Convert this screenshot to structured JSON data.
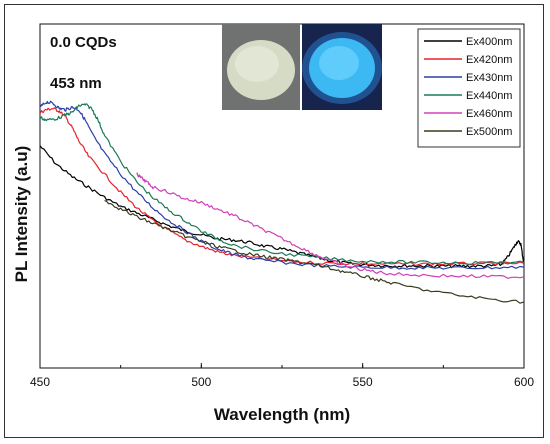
{
  "chart_data": {
    "type": "line",
    "xlabel": "Wavelength (nm)",
    "ylabel": "PL Intensity (a.u)",
    "xlim": [
      450,
      600
    ],
    "ylim": [
      0,
      1
    ],
    "x_ticks": [
      "450",
      "500",
      "550",
      "600"
    ],
    "grid": false,
    "legend_position": "top-right",
    "annotations": [
      "0.0 CQDs",
      "453 nm"
    ],
    "series": [
      {
        "name": "Ex400nm",
        "color": "#000000",
        "x": [
          450,
          455,
          460,
          465,
          470,
          475,
          480,
          485,
          490,
          495,
          500,
          505,
          510,
          515,
          520,
          525,
          530,
          535,
          540,
          545,
          550,
          555,
          560,
          565,
          570,
          575,
          580,
          585,
          590,
          593,
          595,
          597,
          598,
          599,
          600
        ],
        "y": [
          0.83,
          0.76,
          0.71,
          0.67,
          0.63,
          0.595,
          0.57,
          0.545,
          0.52,
          0.5,
          0.485,
          0.47,
          0.465,
          0.455,
          0.44,
          0.43,
          0.415,
          0.4,
          0.385,
          0.375,
          0.37,
          0.367,
          0.365,
          0.365,
          0.365,
          0.364,
          0.364,
          0.364,
          0.365,
          0.37,
          0.4,
          0.44,
          0.46,
          0.45,
          0.37
        ]
      },
      {
        "name": "Ex420nm",
        "color": "#e8222a",
        "x": [
          450,
          452,
          454,
          456,
          458,
          460,
          462,
          465,
          470,
          475,
          480,
          485,
          490,
          495,
          500,
          505,
          510,
          520,
          530,
          540,
          550,
          560,
          570,
          580,
          590,
          600
        ],
        "y": [
          0.96,
          0.97,
          0.975,
          0.965,
          0.94,
          0.9,
          0.85,
          0.79,
          0.72,
          0.65,
          0.59,
          0.54,
          0.5,
          0.465,
          0.44,
          0.42,
          0.405,
          0.39,
          0.38,
          0.375,
          0.373,
          0.372,
          0.372,
          0.373,
          0.374,
          0.375
        ]
      },
      {
        "name": "Ex430nm",
        "color": "#2b3fa8",
        "x": [
          450,
          452,
          454,
          456,
          458,
          460,
          462,
          464,
          466,
          470,
          475,
          480,
          485,
          490,
          495,
          500,
          505,
          510,
          515,
          520,
          530,
          540,
          550,
          560,
          570,
          580,
          590,
          600
        ],
        "y": [
          0.98,
          1.0,
          0.995,
          0.975,
          0.97,
          0.98,
          0.97,
          0.93,
          0.88,
          0.8,
          0.72,
          0.65,
          0.59,
          0.54,
          0.5,
          0.46,
          0.43,
          0.41,
          0.395,
          0.385,
          0.372,
          0.363,
          0.36,
          0.358,
          0.357,
          0.357,
          0.358,
          0.36
        ]
      },
      {
        "name": "Ex440nm",
        "color": "#1a7a5a",
        "x": [
          450,
          452,
          455,
          458,
          460,
          462,
          464,
          466,
          468,
          470,
          475,
          480,
          485,
          490,
          495,
          500,
          505,
          510,
          520,
          530,
          540,
          550,
          560,
          570,
          580,
          590,
          600
        ],
        "y": [
          0.94,
          0.93,
          0.935,
          0.95,
          0.96,
          0.985,
          0.99,
          0.975,
          0.93,
          0.87,
          0.77,
          0.69,
          0.63,
          0.58,
          0.54,
          0.5,
          0.47,
          0.445,
          0.42,
          0.405,
          0.392,
          0.383,
          0.38,
          0.378,
          0.377,
          0.377,
          0.378
        ]
      },
      {
        "name": "Ex460nm",
        "color": "#d040b8",
        "x": [
          480,
          481,
          483,
          485,
          490,
          495,
          500,
          505,
          510,
          515,
          520,
          525,
          530,
          535,
          540,
          545,
          550,
          555,
          560,
          570,
          580,
          590,
          600
        ],
        "y": [
          0.72,
          0.71,
          0.69,
          0.67,
          0.65,
          0.625,
          0.61,
          0.585,
          0.56,
          0.53,
          0.5,
          0.47,
          0.44,
          0.41,
          0.385,
          0.365,
          0.35,
          0.34,
          0.333,
          0.328,
          0.325,
          0.323,
          0.322
        ]
      },
      {
        "name": "Ex500nm",
        "color": "#3a3a1e",
        "x": [
          470,
          475,
          480,
          485,
          490,
          495,
          500,
          505,
          510,
          515,
          520,
          525,
          530,
          535,
          540,
          545,
          550,
          555,
          560,
          570,
          580,
          590,
          600
        ],
        "y": [
          0.62,
          0.585,
          0.555,
          0.53,
          0.505,
          0.48,
          0.46,
          0.44,
          0.425,
          0.41,
          0.4,
          0.39,
          0.38,
          0.37,
          0.355,
          0.34,
          0.325,
          0.31,
          0.295,
          0.27,
          0.25,
          0.235,
          0.225
        ]
      }
    ]
  },
  "inset_photos": [
    {
      "name": "daylight-photo",
      "color": "#d8dcc8",
      "background": "#7a7a78"
    },
    {
      "name": "uv-photo",
      "color": "#3cb4f0",
      "background": "#1a2a55"
    }
  ]
}
